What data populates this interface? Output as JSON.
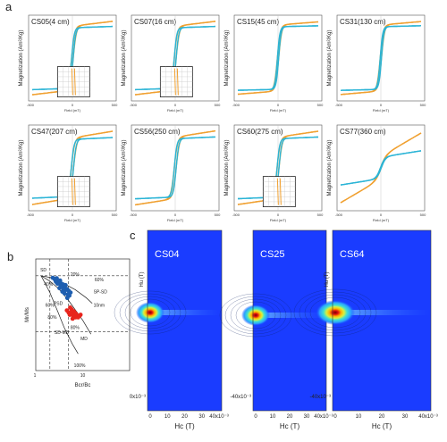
{
  "panel_letters": {
    "a": "a",
    "b": "b",
    "c": "c"
  },
  "colors": {
    "orange": "#f0a030",
    "cyan": "#2ab4d6",
    "blue_point": "#1f5fb0",
    "red_point": "#e8241c"
  },
  "chart_data": [
    {
      "type": "line",
      "panel": "a",
      "xlabel": "Field (mT)",
      "ylabel": "Magnetization (Am²/Kg)",
      "xticks": [
        "-500",
        "0",
        "500"
      ],
      "xlim": [
        -500,
        500
      ],
      "samples": [
        {
          "label": "CS05(4 cm)",
          "sat": 0.85,
          "slope": 0.3,
          "hc": 10,
          "inset": true
        },
        {
          "label": "CS07(16 cm)",
          "sat": 0.85,
          "slope": 0.3,
          "hc": 12,
          "inset": true
        },
        {
          "label": "CS15(45 cm)",
          "sat": 0.88,
          "slope": 0.2,
          "hc": 8,
          "inset": false
        },
        {
          "label": "CS31(130 cm)",
          "sat": 0.88,
          "slope": 0.22,
          "hc": 8,
          "inset": false
        },
        {
          "label": "CS47(207 cm)",
          "sat": 0.8,
          "slope": 0.4,
          "hc": 14,
          "inset": true
        },
        {
          "label": "CS56(250 cm)",
          "sat": 0.82,
          "slope": 0.38,
          "hc": 12,
          "inset": false
        },
        {
          "label": "CS60(275 cm)",
          "sat": 0.82,
          "slope": 0.36,
          "hc": 12,
          "inset": true
        },
        {
          "label": "CS77(360 cm)",
          "sat": 0.3,
          "slope": 1.1,
          "hc": 6,
          "inset": false
        }
      ]
    },
    {
      "type": "scatter",
      "panel": "b",
      "xlabel": "Bcr/Bc",
      "ylabel": "Mr/Ms",
      "xscale": "log",
      "yscale": "log",
      "xlim": [
        1,
        100
      ],
      "ylim": [
        0.01,
        1
      ],
      "xticks": [
        "1",
        "10"
      ],
      "region_labels": [
        "SD",
        "PSD",
        "SD-MD",
        "MD",
        "SP-SD",
        "10nm"
      ],
      "curve_labels": [
        "40%",
        "60%",
        "80%",
        "20%",
        "60%",
        "80%",
        "100%"
      ],
      "series": [
        {
          "color": "blue",
          "points": [
            [
              2.3,
              0.46
            ],
            [
              2.5,
              0.44
            ],
            [
              2.6,
              0.42
            ],
            [
              2.8,
              0.45
            ],
            [
              3.0,
              0.4
            ],
            [
              3.1,
              0.38
            ],
            [
              3.3,
              0.41
            ],
            [
              3.5,
              0.36
            ],
            [
              3.6,
              0.33
            ],
            [
              3.8,
              0.35
            ],
            [
              4.0,
              0.31
            ],
            [
              4.2,
              0.3
            ],
            [
              4.4,
              0.28
            ],
            [
              4.6,
              0.29
            ],
            [
              5.0,
              0.27
            ],
            [
              3.2,
              0.3
            ],
            [
              3.7,
              0.26
            ],
            [
              4.1,
              0.24
            ],
            [
              2.9,
              0.36
            ],
            [
              4.8,
              0.23
            ],
            [
              5.5,
              0.25
            ],
            [
              3.4,
              0.33
            ],
            [
              4.3,
              0.34
            ],
            [
              2.7,
              0.39
            ],
            [
              3.9,
              0.29
            ],
            [
              5.2,
              0.22
            ],
            [
              4.7,
              0.2
            ]
          ]
        },
        {
          "color": "red",
          "points": [
            [
              4.6,
              0.12
            ],
            [
              5.0,
              0.11
            ],
            [
              5.3,
              0.1
            ],
            [
              5.6,
              0.11
            ],
            [
              6.0,
              0.1
            ],
            [
              6.3,
              0.095
            ],
            [
              6.7,
              0.1
            ],
            [
              7.0,
              0.09
            ],
            [
              7.5,
              0.095
            ],
            [
              8.0,
              0.09
            ],
            [
              5.8,
              0.125
            ],
            [
              6.5,
              0.115
            ],
            [
              7.2,
              0.105
            ],
            [
              8.5,
              0.095
            ],
            [
              9.0,
              0.1
            ],
            [
              5.4,
              0.135
            ],
            [
              6.1,
              0.085
            ]
          ]
        }
      ]
    },
    {
      "type": "heatmap",
      "panel": "c",
      "maps": [
        {
          "label": "CS04",
          "xlabel": "Hc (T)",
          "ylabel": "Hu (T)",
          "xticks": [
            "0",
            "10",
            "20",
            "30",
            "40x10⁻³"
          ],
          "ytick": "0x10⁻³",
          "show_y_axis": true
        },
        {
          "label": "CS25",
          "xlabel": "Hc (T)",
          "ylabel": "",
          "xticks": [
            "0",
            "10",
            "20",
            "30",
            "40x10⁻³"
          ],
          "ytick": "-40x10⁻³",
          "show_y_axis": false
        },
        {
          "label": "CS64",
          "xlabel": "Hc (T)",
          "ylabel": "Hu (T)",
          "xticks": [
            "0",
            "10",
            "20",
            "30",
            "40x10⁻³"
          ],
          "ytick": "-40x10⁻³",
          "show_y_axis": true
        }
      ]
    }
  ]
}
